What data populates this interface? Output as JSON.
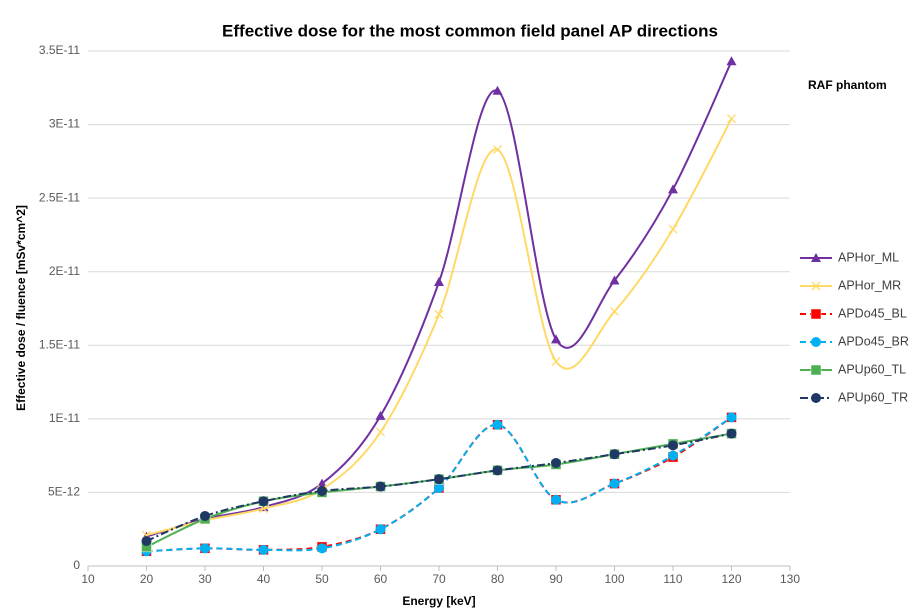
{
  "chart_data": {
    "type": "line",
    "title": "Effective dose for the most common field panel AP directions",
    "xlabel": "Energy [keV]",
    "ylabel": "Effective dose / fluence [mSv*cm^2]",
    "annotation": "RAF phantom",
    "x": [
      20,
      30,
      40,
      50,
      60,
      70,
      80,
      90,
      100,
      110,
      120
    ],
    "xlim": [
      10,
      130
    ],
    "xticks": [
      10,
      20,
      30,
      40,
      50,
      60,
      70,
      80,
      90,
      100,
      110,
      120,
      130
    ],
    "ylim": [
      0,
      3.5e-11
    ],
    "yticks": [
      0,
      {
        "value": 5e-12,
        "label": "5E-12"
      },
      {
        "value": 1e-11,
        "label": "1E-11"
      },
      {
        "value": 1.5e-11,
        "label": "1.5E-11"
      },
      {
        "value": 2e-11,
        "label": "2E-11"
      },
      {
        "value": 2.5e-11,
        "label": "2.5E-11"
      },
      {
        "value": 3e-11,
        "label": "3E-11"
      },
      {
        "value": 3.5e-11,
        "label": "3.5E-11"
      }
    ],
    "grid": true,
    "smooth": true,
    "legend": "right",
    "series": [
      {
        "name": "APHor_ML",
        "color": "#7030a0",
        "marker": "triangle",
        "dash": "solid",
        "values": [
          2e-12,
          3.2e-12,
          4e-12,
          5.6e-12,
          1.02e-11,
          1.93e-11,
          3.23e-11,
          1.54e-11,
          1.94e-11,
          2.56e-11,
          3.43e-11
        ]
      },
      {
        "name": "APHor_MR",
        "color": "#ffd966",
        "marker": "x",
        "dash": "solid",
        "values": [
          2.1e-12,
          3.1e-12,
          3.9e-12,
          5.2e-12,
          9.1e-12,
          1.71e-11,
          2.83e-11,
          1.39e-11,
          1.73e-11,
          2.29e-11,
          3.04e-11
        ]
      },
      {
        "name": "APDo45_BL",
        "color": "#ff0000",
        "marker": "square",
        "dash": "dash",
        "values": [
          1e-12,
          1.2e-12,
          1.1e-12,
          1.3e-12,
          2.5e-12,
          5.3e-12,
          9.6e-12,
          4.5e-12,
          5.6e-12,
          7.4e-12,
          1.01e-11
        ]
      },
      {
        "name": "APDo45_BR",
        "color": "#00b0f0",
        "marker": "circle",
        "dash": "dash",
        "values": [
          1e-12,
          1.2e-12,
          1.1e-12,
          1.2e-12,
          2.5e-12,
          5.3e-12,
          9.6e-12,
          4.5e-12,
          5.6e-12,
          7.5e-12,
          1.01e-11
        ]
      },
      {
        "name": "APUp60_TL",
        "color": "#4caf50",
        "marker": "square",
        "dash": "solid",
        "values": [
          1.3e-12,
          3.2e-12,
          4.4e-12,
          5e-12,
          5.4e-12,
          5.9e-12,
          6.5e-12,
          6.9e-12,
          7.6e-12,
          8.3e-12,
          9e-12
        ]
      },
      {
        "name": "APUp60_TR",
        "color": "#1f3864",
        "marker": "circle",
        "dash": "dashdot",
        "values": [
          1.7e-12,
          3.4e-12,
          4.4e-12,
          5.1e-12,
          5.4e-12,
          5.9e-12,
          6.5e-12,
          7e-12,
          7.6e-12,
          8.2e-12,
          9e-12
        ]
      }
    ]
  }
}
